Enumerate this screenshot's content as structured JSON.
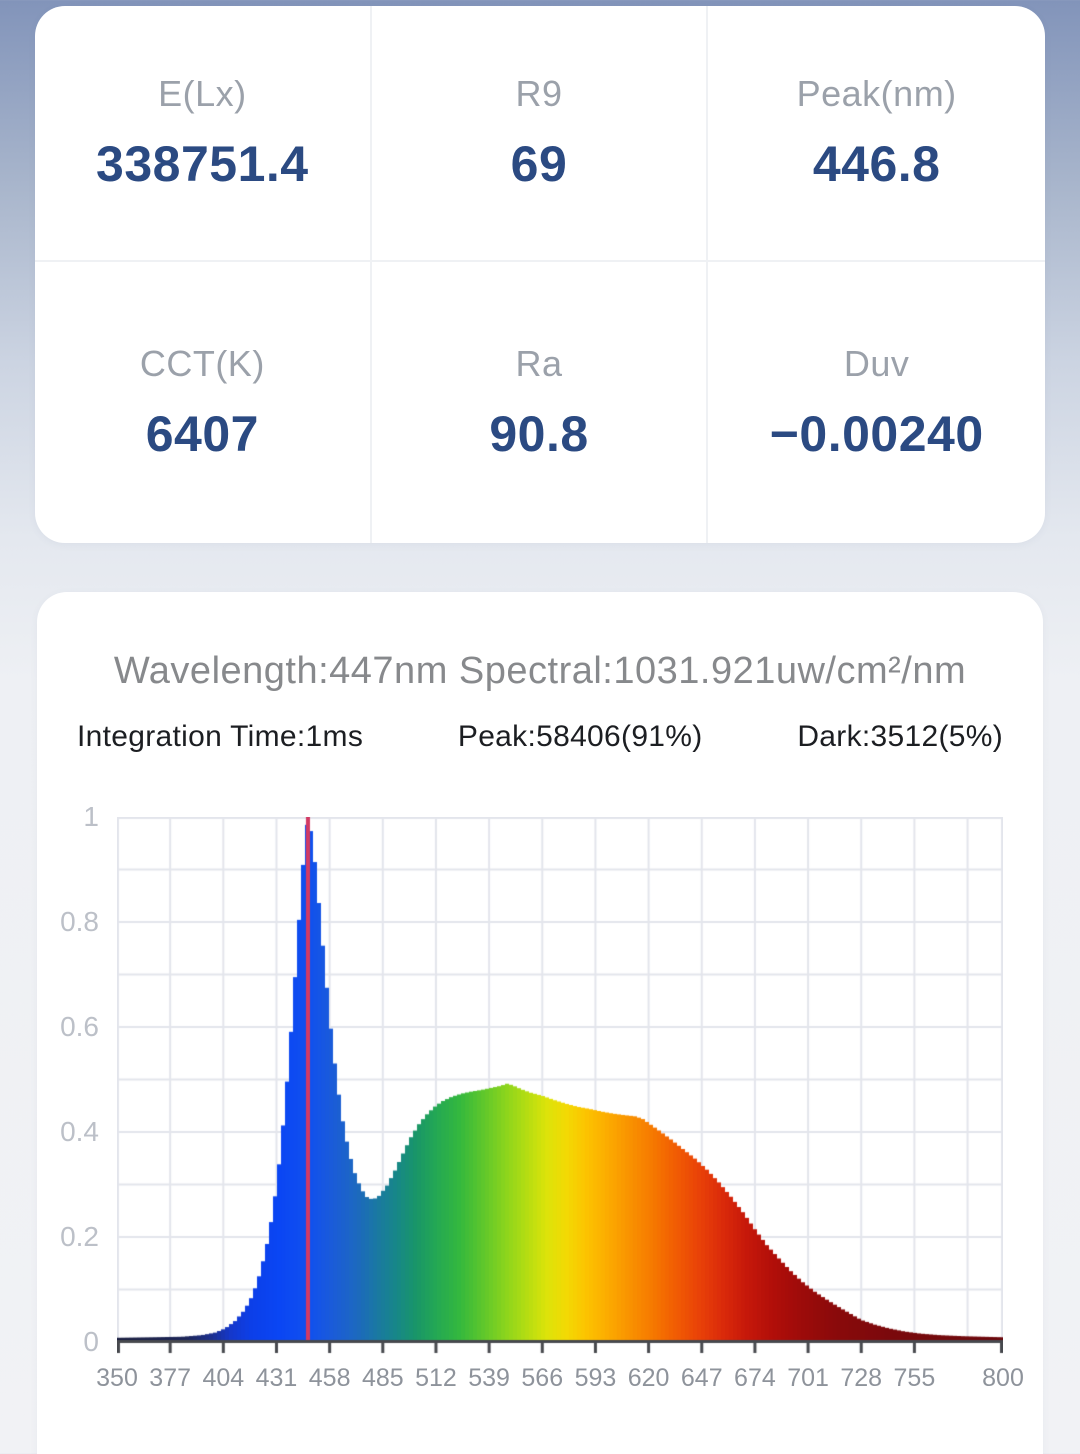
{
  "metrics": {
    "cells": [
      {
        "label": "E(Lx)",
        "value": "338751.4"
      },
      {
        "label": "R9",
        "value": "69"
      },
      {
        "label": "Peak(nm)",
        "value": "446.8"
      },
      {
        "label": "CCT(K)",
        "value": "6407"
      },
      {
        "label": "Ra",
        "value": "90.8"
      },
      {
        "label": "Duv",
        "value": "−0.00240"
      }
    ]
  },
  "spectrum_panel": {
    "title": "Wavelength:447nm Spectral:1031.921uw/cm²/nm",
    "info": {
      "integration": "Integration Time:1ms",
      "peak": "Peak:58406(91%)",
      "dark": "Dark:3512(5%)"
    }
  },
  "chart_data": {
    "type": "area",
    "title": "Wavelength:447nm Spectral:1031.921uw/cm²/nm",
    "xlabel": "",
    "ylabel": "",
    "xlim": [
      350,
      800
    ],
    "ylim": [
      0,
      1
    ],
    "grid": {
      "x_step_nm": 27,
      "y_step": 0.1,
      "color": "#e3e5ec"
    },
    "axis_color": "#47494e",
    "x_ticks": [
      350,
      377,
      404,
      431,
      458,
      485,
      512,
      539,
      566,
      593,
      620,
      647,
      674,
      701,
      728,
      755,
      800
    ],
    "y_ticks": [
      "1",
      "0.8",
      "0.6",
      "0.4",
      "0.2",
      "0"
    ],
    "y_tick_values": [
      1,
      0.8,
      0.6,
      0.4,
      0.2,
      0
    ],
    "cursor": {
      "wavelength": 447,
      "color": "#d23a64"
    },
    "points": [
      [
        350,
        0.008
      ],
      [
        368,
        0.009
      ],
      [
        383,
        0.01
      ],
      [
        393,
        0.013
      ],
      [
        400,
        0.018
      ],
      [
        405,
        0.026
      ],
      [
        410,
        0.04
      ],
      [
        415,
        0.062
      ],
      [
        419,
        0.09
      ],
      [
        423,
        0.135
      ],
      [
        427,
        0.2
      ],
      [
        430,
        0.27
      ],
      [
        433,
        0.36
      ],
      [
        436,
        0.48
      ],
      [
        439,
        0.62
      ],
      [
        442,
        0.78
      ],
      [
        444,
        0.89
      ],
      [
        446,
        0.97
      ],
      [
        447,
        1.0
      ],
      [
        449,
        0.965
      ],
      [
        451,
        0.9
      ],
      [
        453,
        0.82
      ],
      [
        456,
        0.7
      ],
      [
        459,
        0.585
      ],
      [
        462,
        0.49
      ],
      [
        465,
        0.415
      ],
      [
        468,
        0.36
      ],
      [
        471,
        0.32
      ],
      [
        474,
        0.292
      ],
      [
        477,
        0.276
      ],
      [
        480,
        0.271
      ],
      [
        483,
        0.278
      ],
      [
        487,
        0.297
      ],
      [
        491,
        0.325
      ],
      [
        495,
        0.357
      ],
      [
        499,
        0.388
      ],
      [
        503,
        0.413
      ],
      [
        507,
        0.432
      ],
      [
        511,
        0.447
      ],
      [
        515,
        0.458
      ],
      [
        520,
        0.467
      ],
      [
        525,
        0.473
      ],
      [
        530,
        0.477
      ],
      [
        535,
        0.48
      ],
      [
        540,
        0.484
      ],
      [
        545,
        0.488
      ],
      [
        548,
        0.492
      ],
      [
        551,
        0.489
      ],
      [
        555,
        0.482
      ],
      [
        560,
        0.475
      ],
      [
        566,
        0.469
      ],
      [
        572,
        0.461
      ],
      [
        578,
        0.454
      ],
      [
        584,
        0.448
      ],
      [
        590,
        0.444
      ],
      [
        596,
        0.439
      ],
      [
        602,
        0.435
      ],
      [
        608,
        0.432
      ],
      [
        613,
        0.43
      ],
      [
        617,
        0.425
      ],
      [
        620,
        0.417
      ],
      [
        626,
        0.401
      ],
      [
        632,
        0.384
      ],
      [
        638,
        0.366
      ],
      [
        644,
        0.348
      ],
      [
        650,
        0.327
      ],
      [
        656,
        0.303
      ],
      [
        662,
        0.276
      ],
      [
        668,
        0.247
      ],
      [
        674,
        0.215
      ],
      [
        680,
        0.185
      ],
      [
        686,
        0.16
      ],
      [
        692,
        0.136
      ],
      [
        698,
        0.115
      ],
      [
        704,
        0.097
      ],
      [
        710,
        0.082
      ],
      [
        716,
        0.068
      ],
      [
        722,
        0.055
      ],
      [
        728,
        0.042
      ],
      [
        735,
        0.033
      ],
      [
        742,
        0.026
      ],
      [
        750,
        0.02
      ],
      [
        758,
        0.016
      ],
      [
        768,
        0.013
      ],
      [
        780,
        0.011
      ],
      [
        790,
        0.01
      ],
      [
        800,
        0.009
      ]
    ],
    "color_stops": [
      [
        350,
        "#1a1e40"
      ],
      [
        385,
        "#1c2558"
      ],
      [
        398,
        "#1c2f8e"
      ],
      [
        408,
        "#1538cc"
      ],
      [
        418,
        "#0c3fe8"
      ],
      [
        432,
        "#0a46f4"
      ],
      [
        448,
        "#1150ee"
      ],
      [
        460,
        "#1b5cd8"
      ],
      [
        472,
        "#1c69bf"
      ],
      [
        482,
        "#1a78a2"
      ],
      [
        492,
        "#178788"
      ],
      [
        502,
        "#199668"
      ],
      [
        512,
        "#24a854"
      ],
      [
        524,
        "#34b83e"
      ],
      [
        536,
        "#5ec72c"
      ],
      [
        548,
        "#8ed51c"
      ],
      [
        558,
        "#b4dd12"
      ],
      [
        568,
        "#dce30a"
      ],
      [
        578,
        "#f2da04"
      ],
      [
        588,
        "#fcc400"
      ],
      [
        598,
        "#fcae00"
      ],
      [
        610,
        "#f99300"
      ],
      [
        622,
        "#f67900"
      ],
      [
        634,
        "#f15c03"
      ],
      [
        646,
        "#e94108"
      ],
      [
        658,
        "#da2a0a"
      ],
      [
        670,
        "#c6180a"
      ],
      [
        684,
        "#b00e09"
      ],
      [
        700,
        "#9a0b0a"
      ],
      [
        718,
        "#880a0b"
      ],
      [
        742,
        "#7b090c"
      ],
      [
        770,
        "#73090c"
      ],
      [
        800,
        "#6b080c"
      ]
    ],
    "legend": null,
    "annotations": [
      "peak cursor line at 447nm"
    ]
  }
}
